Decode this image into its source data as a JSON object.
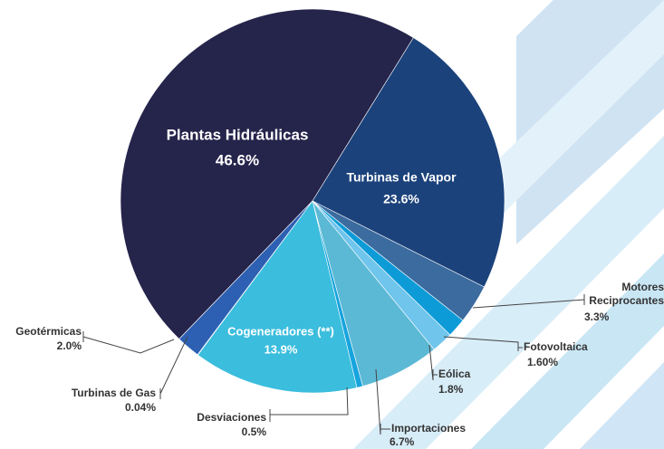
{
  "chart_data": {
    "type": "pie",
    "categories": [
      "Plantas Hidráulicas",
      "Turbinas de Vapor",
      "Motores Reciprocantes",
      "Fotovoltaica",
      "Eólica",
      "Importaciones",
      "Desviaciones",
      "Cogeneradores (**)",
      "Turbinas de Gas",
      "Geotérmicas"
    ],
    "values": [
      46.6,
      23.6,
      3.3,
      1.6,
      1.8,
      6.7,
      0.5,
      13.9,
      0.04,
      2.0
    ],
    "value_labels": [
      "46.6%",
      "23.6%",
      "3.3%",
      "1.60%",
      "1.8%",
      "6.7%",
      "0.5%",
      "13.9%",
      "0.04%",
      "2.0%"
    ],
    "colors": [
      "#25244b",
      "#1b427b",
      "#3b6b9f",
      "#0d9bd7",
      "#6fc5ec",
      "#5cb9d5",
      "#17a4de",
      "#3bbddd",
      "#2b6bb1",
      "#2d60b2"
    ]
  }
}
